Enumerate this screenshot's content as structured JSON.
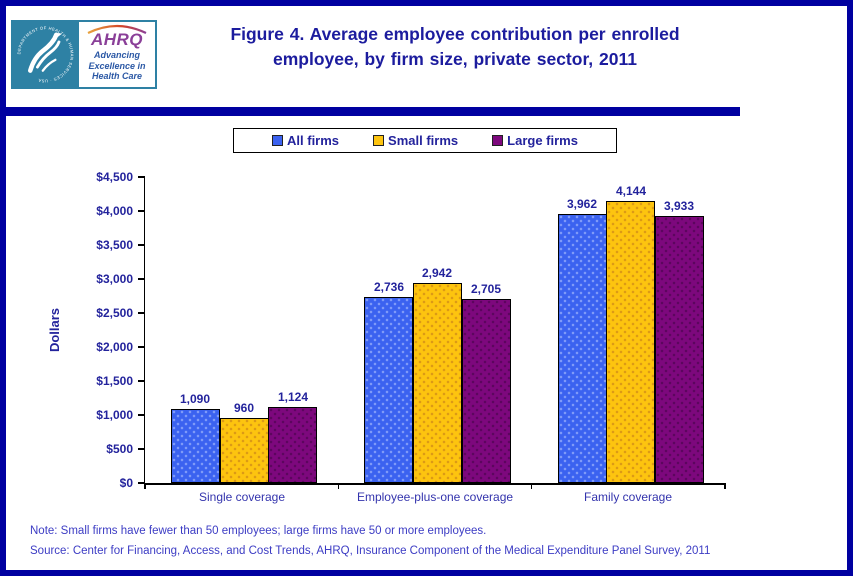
{
  "header": {
    "logo": {
      "seal_text": "DEPARTMENT OF HEALTH & HUMAN SERVICES · USA",
      "acronym": "AHRQ",
      "tagline": [
        "Advancing",
        "Excellence in",
        "Health Care"
      ]
    },
    "title": "Figure 4. Average employee contribution per enrolled employee, by firm size, private sector, 2011"
  },
  "chart_data": {
    "type": "bar",
    "title": "Figure 4. Average employee contribution per enrolled employee, by firm size, private sector, 2011",
    "categories": [
      "Single coverage",
      "Employee-plus-one coverage",
      "Family coverage"
    ],
    "series": [
      {
        "name": "All firms",
        "color": "#3b62f0",
        "dot_color": "#7f9af8",
        "values": [
          1090,
          2736,
          3962
        ]
      },
      {
        "name": "Small firms",
        "color": "#fdc40f",
        "dot_color": "#dc9a16",
        "values": [
          960,
          2942,
          4144
        ]
      },
      {
        "name": "Large firms",
        "color": "#7d087d",
        "dot_color": "#5c065e",
        "values": [
          1124,
          2705,
          3933
        ]
      }
    ],
    "xlabel": "",
    "ylabel": "Dollars",
    "ylim": [
      0,
      4500
    ],
    "ytick_step": 500,
    "value_labels": true,
    "grid": false,
    "legend_position": "top"
  },
  "footer": {
    "note": "Note: Small firms have fewer than 50 employees; large firms have 50 or more employees.",
    "source": "Source: Center for Financing, Access, and Cost Trends, AHRQ, Insurance Component of the Medical Expenditure Panel Survey, 2011"
  },
  "theme": {
    "border_navy": "#0000a0",
    "title_color": "#1c1c9e",
    "label_color": "#23239c",
    "note_color": "#3c3cc4",
    "logo_teal": "#2e81a4",
    "ahrq_purple": "#8a3f98"
  }
}
